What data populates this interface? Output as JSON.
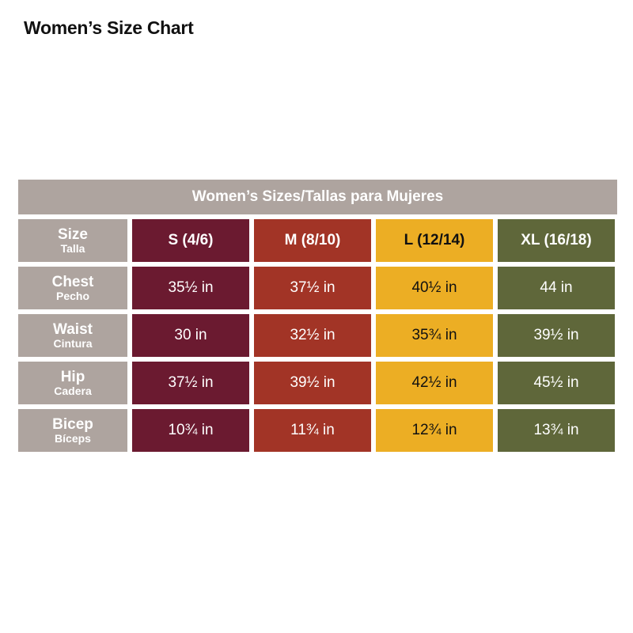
{
  "page": {
    "title": "Women’s Size Chart"
  },
  "table": {
    "header": "Women’s Sizes/Tallas para Mujeres",
    "colors": {
      "label_bg": "#aea49f",
      "s": "#6b1a30",
      "m": "#a23426",
      "l": "#ecae24",
      "xl": "#5f673a"
    },
    "rows": [
      {
        "label": "Size",
        "label_es": "Talla",
        "cells": [
          "S (4/6)",
          "M (8/10)",
          "L (12/14)",
          "XL (16/18)"
        ]
      },
      {
        "label": "Chest",
        "label_es": "Pecho",
        "cells": [
          "35½ in",
          "37½ in",
          "40½ in",
          "44 in"
        ]
      },
      {
        "label": "Waist",
        "label_es": "Cintura",
        "cells": [
          "30 in",
          "32½ in",
          "35¾ in",
          "39½ in"
        ]
      },
      {
        "label": "Hip",
        "label_es": "Cadera",
        "cells": [
          "37½ in",
          "39½ in",
          "42½ in",
          "45½ in"
        ]
      },
      {
        "label": "Bicep",
        "label_es": "Bíceps",
        "cells": [
          "10¾ in",
          "11¾ in",
          "12¾ in",
          "13¾ in"
        ]
      }
    ]
  }
}
